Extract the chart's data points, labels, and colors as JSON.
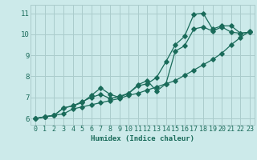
{
  "xlabel": "Humidex (Indice chaleur)",
  "bg_color": "#cceaea",
  "grid_color": "#aacccc",
  "line_color": "#1a6b5a",
  "xlim": [
    -0.5,
    23.5
  ],
  "ylim": [
    5.7,
    11.4
  ],
  "xticks": [
    0,
    1,
    2,
    3,
    4,
    5,
    6,
    7,
    8,
    9,
    10,
    11,
    12,
    13,
    14,
    15,
    16,
    17,
    18,
    19,
    20,
    21,
    22,
    23
  ],
  "yticks": [
    6,
    7,
    8,
    9,
    10,
    11
  ],
  "line1_x": [
    0,
    1,
    2,
    3,
    4,
    5,
    6,
    7,
    8,
    9,
    10,
    11,
    12,
    13,
    14,
    15,
    16,
    17,
    18,
    19,
    20,
    21,
    22,
    23
  ],
  "line1_y": [
    6.0,
    6.08,
    6.15,
    6.22,
    6.45,
    6.55,
    6.65,
    6.75,
    6.85,
    6.95,
    7.1,
    7.2,
    7.35,
    7.5,
    7.65,
    7.8,
    8.05,
    8.3,
    8.55,
    8.8,
    9.1,
    9.5,
    9.85,
    10.15
  ],
  "line2_x": [
    0,
    1,
    2,
    3,
    4,
    5,
    6,
    7,
    8,
    9,
    10,
    11,
    12,
    13,
    14,
    15,
    16,
    17,
    18,
    19,
    20,
    21,
    22,
    23
  ],
  "line2_y": [
    6.0,
    6.08,
    6.15,
    6.5,
    6.6,
    6.8,
    7.0,
    7.15,
    6.95,
    7.05,
    7.2,
    7.6,
    7.8,
    7.3,
    7.65,
    9.2,
    9.45,
    10.25,
    10.35,
    10.15,
    10.35,
    10.1,
    10.05,
    10.1
  ],
  "line3_x": [
    0,
    1,
    2,
    3,
    4,
    5,
    6,
    7,
    8,
    9,
    10,
    11,
    12,
    13,
    14,
    15,
    16,
    17,
    18,
    19,
    20,
    21,
    22,
    23
  ],
  "line3_y": [
    6.0,
    6.08,
    6.15,
    6.5,
    6.6,
    6.75,
    7.1,
    7.45,
    7.15,
    7.0,
    7.2,
    7.55,
    7.65,
    7.95,
    8.7,
    9.5,
    9.9,
    10.95,
    11.0,
    10.25,
    10.4,
    10.4,
    10.05,
    10.1
  ]
}
